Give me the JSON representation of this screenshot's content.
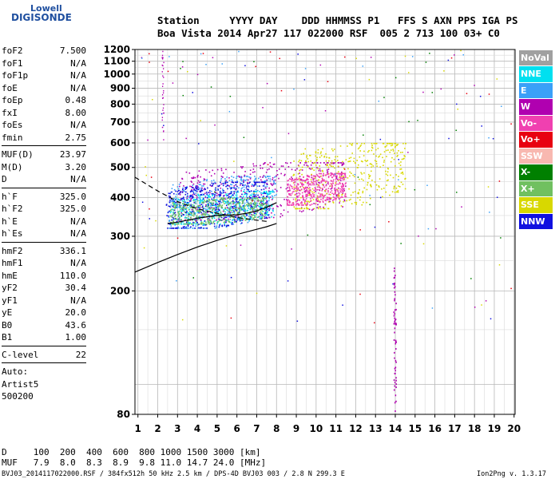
{
  "logo": {
    "line1": "Lowell",
    "line2": "DIGISONDE"
  },
  "header": {
    "row1": "Station     YYYY DAY    DDD HHMMSS P1   FFS S AXN PPS IGA PS",
    "row2": "Boa Vista 2014 Apr27 117 022000 RSF  005 2 713 100 03+ C0"
  },
  "params": {
    "group1": [
      [
        "foF2",
        "7.500"
      ],
      [
        "foF1",
        "N/A"
      ],
      [
        "foF1p",
        "N/A"
      ],
      [
        "foE",
        "N/A"
      ],
      [
        "foEp",
        "0.48"
      ],
      [
        "fxI",
        "8.00"
      ],
      [
        "foEs",
        "N/A"
      ],
      [
        "fmin",
        "2.75"
      ]
    ],
    "group2": [
      [
        "MUF(D)",
        "23.97"
      ],
      [
        "M(D)",
        "3.20"
      ],
      [
        "D",
        "N/A"
      ]
    ],
    "group3": [
      [
        "h`F",
        "325.0"
      ],
      [
        "h`F2",
        "325.0"
      ],
      [
        "h`E",
        "N/A"
      ],
      [
        "h`Es",
        "N/A"
      ]
    ],
    "group4": [
      [
        "hmF2",
        "336.1"
      ],
      [
        "hmF1",
        "N/A"
      ],
      [
        "hmE",
        "110.0"
      ],
      [
        "yF2",
        "30.4"
      ],
      [
        "yF1",
        "N/A"
      ],
      [
        "yE",
        "20.0"
      ],
      [
        "B0",
        "43.6"
      ],
      [
        "B1",
        "1.00"
      ]
    ],
    "group5": [
      [
        "C-level",
        "22"
      ]
    ],
    "auto": [
      "Auto:",
      "Artist5",
      "500200"
    ]
  },
  "legend": [
    {
      "label": "NoVal",
      "color": "#a0a0a0"
    },
    {
      "label": "NNE",
      "color": "#00e0f0"
    },
    {
      "label": "E",
      "color": "#3aa0f8"
    },
    {
      "label": "W",
      "color": "#b000b0"
    },
    {
      "label": "Vo-",
      "color": "#f040b0"
    },
    {
      "label": "Vo+",
      "color": "#e80010"
    },
    {
      "label": "SSW",
      "color": "#f8b8b0"
    },
    {
      "label": "X-",
      "color": "#008000"
    },
    {
      "label": "X+",
      "color": "#70c060"
    },
    {
      "label": "SSE",
      "color": "#d8d800"
    },
    {
      "label": "NNW",
      "color": "#1010e0"
    }
  ],
  "bottom": {
    "d_row": "D     100  200  400  600  800 1000 1500 3000 [km]",
    "muf_row": "MUF   7.9  8.0  8.3  8.9  9.8 11.0 14.7 24.0 [MHz]",
    "footer_left": "BVJ03_2014117022000.RSF / 384fx512h 50 kHz 2.5 km / DPS-4D BVJ03 003 / 2.8 N 299.3 E",
    "footer_right": "Ion2Png v. 1.3.17"
  },
  "chart_data": {
    "type": "scatter",
    "xlabel": "",
    "ylabel": "",
    "xlim": [
      0.85,
      20.05
    ],
    "ylim": [
      80,
      1200
    ],
    "xticks": [
      1,
      2,
      3,
      4,
      5,
      6,
      7,
      8,
      9,
      10,
      11,
      12,
      13,
      14,
      15,
      16,
      17,
      18,
      19,
      20
    ],
    "yticks": [
      80,
      200,
      300,
      400,
      500,
      600,
      700,
      800,
      900,
      1000,
      1100,
      1200
    ],
    "yscale": "log",
    "grid": true,
    "legend_position": "right",
    "trace_clusters": [
      {
        "name": "E",
        "f_range": [
          2.5,
          8.0
        ],
        "h_range": [
          320,
          470
        ],
        "color": "#3aa0f8"
      },
      {
        "name": "NNE",
        "f_range": [
          2.6,
          7.8
        ],
        "h_range": [
          330,
          420
        ],
        "color": "#00e0f0"
      },
      {
        "name": "W",
        "f_range": [
          3.0,
          11.5
        ],
        "h_range": [
          340,
          520
        ],
        "color": "#b000b0"
      },
      {
        "name": "NNW",
        "f_range": [
          2.4,
          7.6
        ],
        "h_range": [
          320,
          450
        ],
        "color": "#1010e0"
      },
      {
        "name": "SSE",
        "f_range": [
          8.8,
          14.5
        ],
        "h_range": [
          370,
          600
        ],
        "color": "#d8d800"
      },
      {
        "name": "X+",
        "f_range": [
          2.6,
          7.5
        ],
        "h_range": [
          330,
          400
        ],
        "color": "#70c060"
      },
      {
        "name": "Vo-",
        "f_range": [
          8.5,
          11.5
        ],
        "h_range": [
          380,
          480
        ],
        "color": "#f040b0"
      }
    ],
    "profile_curve": [
      [
        0.85,
        230
      ],
      [
        2,
        247
      ],
      [
        3,
        262
      ],
      [
        4,
        277
      ],
      [
        5,
        291
      ],
      [
        6,
        304
      ],
      [
        7,
        316
      ],
      [
        7.5,
        322
      ],
      [
        8.0,
        330
      ]
    ],
    "dashed_curve": [
      [
        0.85,
        465
      ],
      [
        2,
        420
      ],
      [
        3,
        388
      ],
      [
        4,
        368
      ],
      [
        5,
        356
      ],
      [
        6,
        345
      ],
      [
        7,
        338
      ],
      [
        7.5,
        335
      ]
    ],
    "trace_line": [
      [
        2.5,
        330
      ],
      [
        3,
        333
      ],
      [
        4,
        343
      ],
      [
        5,
        350
      ],
      [
        6,
        352
      ],
      [
        6.5,
        356
      ],
      [
        7,
        362
      ],
      [
        7.5,
        372
      ],
      [
        8,
        385
      ]
    ]
  }
}
